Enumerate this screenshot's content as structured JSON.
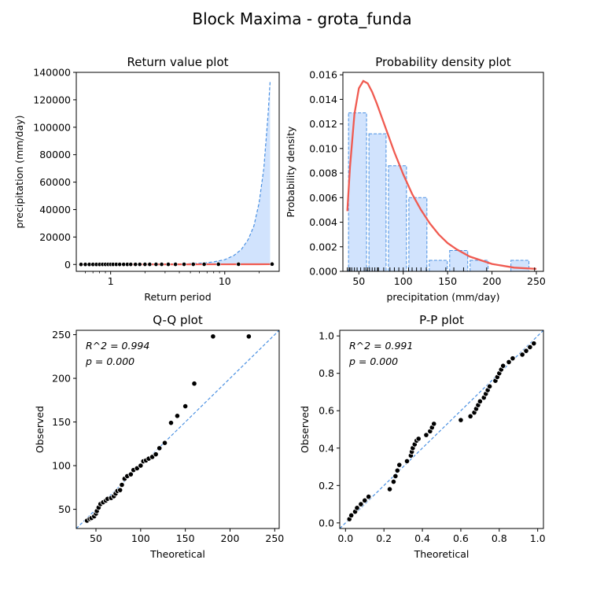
{
  "figure": {
    "suptitle": "Block Maxima - grota_funda"
  },
  "colors": {
    "hist_fill": "#d1e3fd",
    "hist_edge": "#4a90e2",
    "density_line": "#f05a50",
    "ref_line": "#4a90e2",
    "ci_fill": "#d1e3fd",
    "points": "#000000"
  },
  "chart_data": [
    {
      "id": "return",
      "type": "line",
      "title": "Return value plot",
      "xlabel": "Return period",
      "ylabel": "precipitation (mm/day)",
      "xscale": "log",
      "xlim": [
        0.5,
        30
      ],
      "ylim": [
        -5000,
        140000
      ],
      "xticks": [
        1,
        10
      ],
      "xtick_labels": [
        "1",
        "10"
      ],
      "yticks": [
        0,
        20000,
        40000,
        60000,
        80000,
        100000,
        120000,
        140000
      ],
      "ytick_labels": [
        "0",
        "20000",
        "40000",
        "60000",
        "80000",
        "100000",
        "120000",
        "140000"
      ],
      "fit_line": {
        "x": [
          0.55,
          1,
          2,
          5,
          10,
          15,
          20,
          25
        ],
        "y": [
          40,
          60,
          78,
          105,
          135,
          155,
          170,
          185
        ]
      },
      "ci_upper": {
        "x": [
          0.55,
          1,
          2,
          3,
          4,
          5,
          6,
          7,
          8,
          10,
          12,
          14,
          16,
          18,
          20,
          22,
          24,
          25
        ],
        "y": [
          60,
          90,
          150,
          250,
          400,
          600,
          900,
          1300,
          1900,
          3500,
          6500,
          11000,
          18000,
          28000,
          45000,
          70000,
          110000,
          134000
        ]
      },
      "points": {
        "x": [
          0.55,
          0.6,
          0.65,
          0.7,
          0.75,
          0.8,
          0.85,
          0.9,
          0.95,
          1.0,
          1.05,
          1.12,
          1.2,
          1.3,
          1.4,
          1.5,
          1.65,
          1.8,
          2.0,
          2.2,
          2.5,
          2.8,
          3.2,
          3.7,
          4.4,
          5.3,
          6.6,
          8.8,
          13.2,
          26.0
        ],
        "y": [
          37,
          39,
          40,
          42,
          45,
          48,
          52,
          56,
          58,
          60,
          62,
          65,
          68,
          71,
          72,
          78,
          85,
          90,
          95,
          100,
          106,
          110,
          115,
          120,
          126,
          148,
          157,
          168,
          194,
          248
        ]
      }
    },
    {
      "id": "density",
      "type": "bar",
      "title": "Probability density plot",
      "xlabel": "precipitation (mm/day)",
      "ylabel": "Probability density",
      "xlim": [
        32,
        258
      ],
      "ylim": [
        0,
        0.0162
      ],
      "xticks": [
        50,
        100,
        150,
        200,
        250
      ],
      "xtick_labels": [
        "50",
        "100",
        "150",
        "200",
        "250"
      ],
      "yticks": [
        0,
        0.002,
        0.004,
        0.006,
        0.008,
        0.01,
        0.012,
        0.014,
        0.016
      ],
      "ytick_labels": [
        "0.000",
        "0.002",
        "0.004",
        "0.006",
        "0.008",
        "0.010",
        "0.012",
        "0.014",
        "0.016"
      ],
      "bins": [
        {
          "x0": 37,
          "x1": 60,
          "value": 0.0129
        },
        {
          "x0": 60,
          "x1": 82,
          "value": 0.0112
        },
        {
          "x0": 82,
          "x1": 105,
          "value": 0.0086
        },
        {
          "x0": 105,
          "x1": 128,
          "value": 0.006
        },
        {
          "x0": 128,
          "x1": 151,
          "value": 0.0009
        },
        {
          "x0": 151,
          "x1": 174,
          "value": 0.0017
        },
        {
          "x0": 174,
          "x1": 197,
          "value": 0.0009
        },
        {
          "x0": 197,
          "x1": 220,
          "value": 0
        },
        {
          "x0": 220,
          "x1": 243,
          "value": 0.0009
        }
      ],
      "pdf_line": {
        "x": [
          37,
          40,
          45,
          50,
          55,
          60,
          65,
          70,
          80,
          90,
          100,
          110,
          120,
          130,
          140,
          150,
          160,
          175,
          200,
          225,
          250
        ],
        "y": [
          0.0049,
          0.0085,
          0.0128,
          0.0149,
          0.0155,
          0.0153,
          0.0146,
          0.0137,
          0.0117,
          0.0097,
          0.0079,
          0.0063,
          0.005,
          0.0039,
          0.003,
          0.0023,
          0.0018,
          0.0012,
          0.0006,
          0.0003,
          0.0002
        ]
      },
      "rug": [
        37,
        39,
        40,
        42,
        45,
        48,
        52,
        56,
        58,
        60,
        62,
        65,
        68,
        71,
        72,
        78,
        85,
        90,
        95,
        100,
        106,
        110,
        115,
        120,
        126,
        148,
        157,
        168,
        194,
        248
      ]
    },
    {
      "id": "qq",
      "type": "scatter",
      "title": "Q-Q plot",
      "xlabel": "Theoretical",
      "ylabel": "Observed",
      "xlim": [
        28,
        255
      ],
      "ylim": [
        28,
        255
      ],
      "xticks": [
        50,
        100,
        150,
        200,
        250
      ],
      "xtick_labels": [
        "50",
        "100",
        "150",
        "200",
        "250"
      ],
      "yticks": [
        50,
        100,
        150,
        200,
        250
      ],
      "ytick_labels": [
        "50",
        "100",
        "150",
        "200",
        "250"
      ],
      "annotation": {
        "r2": "R^2 = 0.994",
        "p": "p = 0.000"
      },
      "ref_line": {
        "x": [
          28,
          255
        ],
        "y": [
          28,
          255
        ]
      },
      "points": {
        "x": [
          40,
          43,
          45,
          48,
          50,
          51,
          53,
          55,
          58,
          61,
          63,
          67,
          70,
          72,
          74,
          77,
          79,
          82,
          85,
          89,
          92,
          96,
          100,
          103,
          106,
          109,
          113,
          117,
          121,
          127,
          134,
          141,
          150,
          160,
          181,
          221
        ],
        "y": [
          37,
          39,
          40,
          42,
          45,
          48,
          52,
          56,
          58,
          60,
          62,
          63,
          65,
          68,
          71,
          72,
          78,
          85,
          88,
          90,
          95,
          97,
          100,
          105,
          106,
          108,
          110,
          113,
          120,
          126,
          149,
          157,
          168,
          194,
          248,
          248
        ]
      }
    },
    {
      "id": "pp",
      "type": "scatter",
      "title": "P-P plot",
      "xlabel": "Theoretical",
      "ylabel": "Observed",
      "xlim": [
        -0.03,
        1.03
      ],
      "ylim": [
        -0.03,
        1.03
      ],
      "xticks": [
        0,
        0.2,
        0.4,
        0.6,
        0.8,
        1.0
      ],
      "xtick_labels": [
        "0.0",
        "0.2",
        "0.4",
        "0.6",
        "0.8",
        "1.0"
      ],
      "yticks": [
        0,
        0.2,
        0.4,
        0.6,
        0.8,
        1.0
      ],
      "ytick_labels": [
        "0.0",
        "0.2",
        "0.4",
        "0.6",
        "0.8",
        "1.0"
      ],
      "annotation": {
        "r2": "R^2 = 0.991",
        "p": "p = 0.000"
      },
      "ref_line": {
        "x": [
          -0.03,
          1.03
        ],
        "y": [
          -0.03,
          1.03
        ]
      },
      "points": {
        "x": [
          0.02,
          0.03,
          0.05,
          0.06,
          0.08,
          0.1,
          0.12,
          0.23,
          0.25,
          0.26,
          0.27,
          0.28,
          0.32,
          0.34,
          0.345,
          0.35,
          0.36,
          0.37,
          0.38,
          0.42,
          0.44,
          0.45,
          0.46,
          0.6,
          0.65,
          0.67,
          0.68,
          0.69,
          0.7,
          0.72,
          0.73,
          0.74,
          0.75,
          0.78,
          0.79,
          0.8,
          0.81,
          0.82,
          0.85,
          0.87,
          0.92,
          0.94,
          0.96,
          0.98
        ],
        "y": [
          0.02,
          0.04,
          0.06,
          0.08,
          0.1,
          0.12,
          0.14,
          0.18,
          0.22,
          0.25,
          0.28,
          0.31,
          0.33,
          0.36,
          0.38,
          0.4,
          0.42,
          0.44,
          0.45,
          0.47,
          0.49,
          0.51,
          0.53,
          0.55,
          0.57,
          0.59,
          0.61,
          0.63,
          0.65,
          0.67,
          0.69,
          0.71,
          0.73,
          0.76,
          0.78,
          0.8,
          0.82,
          0.84,
          0.86,
          0.88,
          0.9,
          0.92,
          0.94,
          0.96
        ]
      }
    }
  ]
}
